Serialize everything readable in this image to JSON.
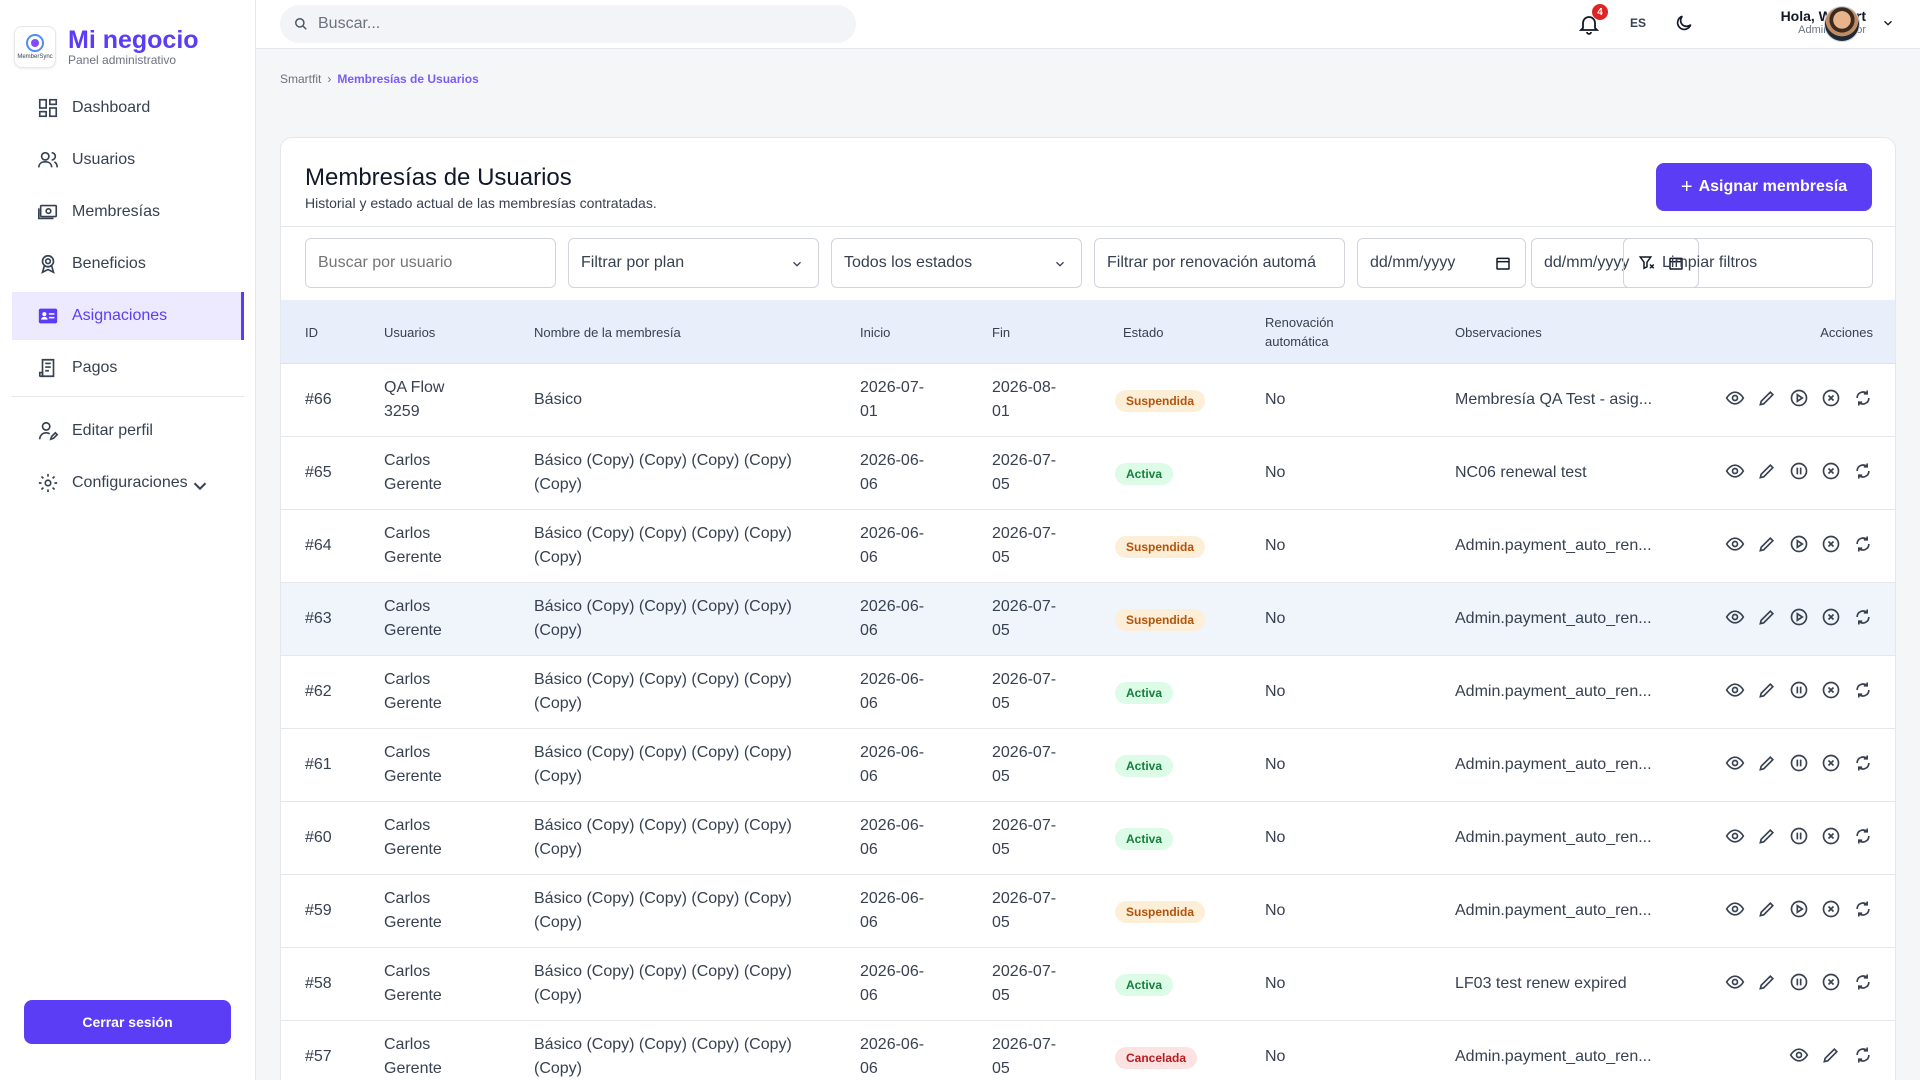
{
  "brand": {
    "title": "Mi negocio",
    "subtitle": "Panel administrativo",
    "logo_text": "MemberSync"
  },
  "sidebar": {
    "items": [
      {
        "label": "Dashboard",
        "icon": "dashboard-icon"
      },
      {
        "label": "Usuarios",
        "icon": "users-icon"
      },
      {
        "label": "Membresías",
        "icon": "membership-card-icon"
      },
      {
        "label": "Beneficios",
        "icon": "award-icon"
      },
      {
        "label": "Asignaciones",
        "icon": "id-card-icon",
        "active": true
      },
      {
        "label": "Pagos",
        "icon": "receipt-icon"
      }
    ],
    "secondary": [
      {
        "label": "Editar perfil",
        "icon": "user-edit-icon"
      },
      {
        "label": "Configuraciones",
        "icon": "gear-icon"
      }
    ],
    "logout_label": "Cerrar sesión"
  },
  "topbar": {
    "search_placeholder": "Buscar...",
    "notifications_count": "4",
    "language": "ES",
    "greeting": "Hola, Wilbert",
    "role": "Administrador"
  },
  "breadcrumb": {
    "root": "Smartfit",
    "current": "Membresías de Usuarios"
  },
  "page": {
    "title": "Membresías de Usuarios",
    "subtitle": "Historial y estado actual de las membresías contratadas.",
    "assign_label": "Asignar membresía"
  },
  "filters": {
    "user_placeholder": "Buscar por usuario",
    "plan": "Filtrar por plan",
    "status": "Todos los estados",
    "renewal": "Filtrar por renovación automá",
    "date_from": "dd/mm/yyyy",
    "date_to": "dd/mm/yyyy",
    "clear_label": "Limpiar filtros"
  },
  "colors": {
    "accent": "#5b3df5",
    "suspended": "#b45309",
    "active": "#15803d",
    "cancelled": "#b91c1c"
  },
  "table": {
    "columns": [
      "ID",
      "Usuarios",
      "Nombre de la membresía",
      "Inicio",
      "Fin",
      "Estado",
      "Renovación",
      "automática",
      "Observaciones",
      "Acciones"
    ],
    "rows": [
      {
        "id": "#66",
        "user1": "QA Flow",
        "user2": "3259",
        "plan1": "Básico",
        "plan2": "",
        "start1": "2026-07-",
        "start2": "01",
        "end1": "2026-08-",
        "end2": "01",
        "status": "Suspendida",
        "kind": "susp",
        "renew": "No",
        "notes": "Membresía QA Test - asig..."
      },
      {
        "id": "#65",
        "user1": "Carlos",
        "user2": "Gerente",
        "plan1": "Básico (Copy) (Copy) (Copy) (Copy)",
        "plan2": "(Copy)",
        "start1": "2026-06-",
        "start2": "06",
        "end1": "2026-07-",
        "end2": "05",
        "status": "Activa",
        "kind": "act",
        "renew": "No",
        "notes": "NC06 renewal test"
      },
      {
        "id": "#64",
        "user1": "Carlos",
        "user2": "Gerente",
        "plan1": "Básico (Copy) (Copy) (Copy) (Copy)",
        "plan2": "(Copy)",
        "start1": "2026-06-",
        "start2": "06",
        "end1": "2026-07-",
        "end2": "05",
        "status": "Suspendida",
        "kind": "susp",
        "renew": "No",
        "notes": "Admin.payment_auto_ren..."
      },
      {
        "id": "#63",
        "user1": "Carlos",
        "user2": "Gerente",
        "plan1": "Básico (Copy) (Copy) (Copy) (Copy)",
        "plan2": "(Copy)",
        "start1": "2026-06-",
        "start2": "06",
        "end1": "2026-07-",
        "end2": "05",
        "status": "Suspendida",
        "kind": "susp",
        "renew": "No",
        "notes": "Admin.payment_auto_ren..."
      },
      {
        "id": "#62",
        "user1": "Carlos",
        "user2": "Gerente",
        "plan1": "Básico (Copy) (Copy) (Copy) (Copy)",
        "plan2": "(Copy)",
        "start1": "2026-06-",
        "start2": "06",
        "end1": "2026-07-",
        "end2": "05",
        "status": "Activa",
        "kind": "act",
        "renew": "No",
        "notes": "Admin.payment_auto_ren..."
      },
      {
        "id": "#61",
        "user1": "Carlos",
        "user2": "Gerente",
        "plan1": "Básico (Copy) (Copy) (Copy) (Copy)",
        "plan2": "(Copy)",
        "start1": "2026-06-",
        "start2": "06",
        "end1": "2026-07-",
        "end2": "05",
        "status": "Activa",
        "kind": "act",
        "renew": "No",
        "notes": "Admin.payment_auto_ren..."
      },
      {
        "id": "#60",
        "user1": "Carlos",
        "user2": "Gerente",
        "plan1": "Básico (Copy) (Copy) (Copy) (Copy)",
        "plan2": "(Copy)",
        "start1": "2026-06-",
        "start2": "06",
        "end1": "2026-07-",
        "end2": "05",
        "status": "Activa",
        "kind": "act",
        "renew": "No",
        "notes": "Admin.payment_auto_ren..."
      },
      {
        "id": "#59",
        "user1": "Carlos",
        "user2": "Gerente",
        "plan1": "Básico (Copy) (Copy) (Copy) (Copy)",
        "plan2": "(Copy)",
        "start1": "2026-06-",
        "start2": "06",
        "end1": "2026-07-",
        "end2": "05",
        "status": "Suspendida",
        "kind": "susp",
        "renew": "No",
        "notes": "Admin.payment_auto_ren..."
      },
      {
        "id": "#58",
        "user1": "Carlos",
        "user2": "Gerente",
        "plan1": "Básico (Copy) (Copy) (Copy) (Copy)",
        "plan2": "(Copy)",
        "start1": "2026-06-",
        "start2": "06",
        "end1": "2026-07-",
        "end2": "05",
        "status": "Activa",
        "kind": "act",
        "renew": "No",
        "notes": "LF03 test renew expired"
      },
      {
        "id": "#57",
        "user1": "Carlos",
        "user2": "Gerente",
        "plan1": "Básico (Copy) (Copy) (Copy) (Copy)",
        "plan2": "(Copy)",
        "start1": "2026-06-",
        "start2": "06",
        "end1": "2026-07-",
        "end2": "05",
        "status": "Cancelada",
        "kind": "canc",
        "renew": "No",
        "notes": "Admin.payment_auto_ren..."
      }
    ]
  }
}
